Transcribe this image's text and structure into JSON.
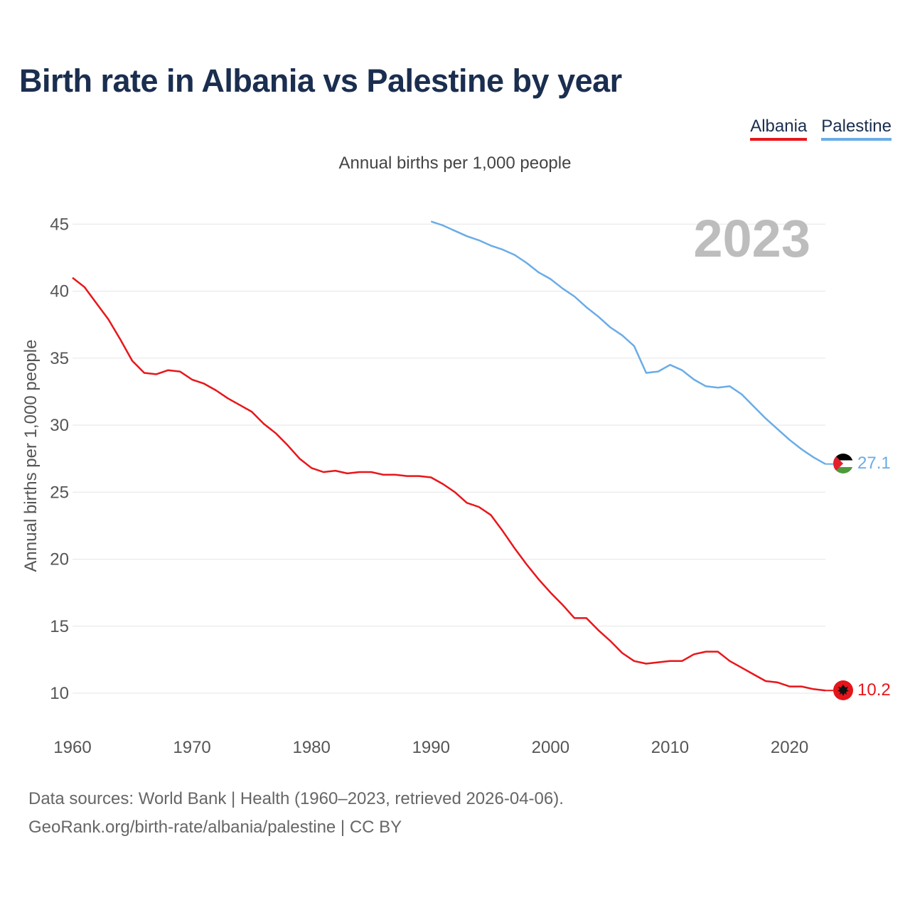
{
  "title": "Birth rate in Albania vs Palestine by year",
  "subtitle": "Annual births per 1,000 people",
  "legend": [
    {
      "label": "Albania",
      "color": "#e8161b"
    },
    {
      "label": "Palestine",
      "color": "#6aace6"
    }
  ],
  "footer": {
    "line1": "Data sources: World Bank | Health (1960–2023, retrieved 2026-04-06).",
    "line2": "GeoRank.org/birth-rate/albania/palestine | CC BY"
  },
  "chart_data": {
    "type": "line",
    "title": "Birth rate in Albania vs Palestine by year",
    "ylabel": "Annual births per 1,000 people",
    "xlabel": "",
    "year_label": "2023",
    "xlim": [
      1960,
      2023
    ],
    "ylim": [
      7,
      46
    ],
    "x_ticks": [
      1960,
      1970,
      1980,
      1990,
      2000,
      2010,
      2020
    ],
    "y_ticks": [
      10,
      15,
      20,
      25,
      30,
      35,
      40,
      45
    ],
    "grid": true,
    "series": [
      {
        "name": "Albania",
        "color": "#e8161b",
        "end_label": "10.2",
        "x": [
          1960,
          1961,
          1962,
          1963,
          1964,
          1965,
          1966,
          1967,
          1968,
          1969,
          1970,
          1971,
          1972,
          1973,
          1974,
          1975,
          1976,
          1977,
          1978,
          1979,
          1980,
          1981,
          1982,
          1983,
          1984,
          1985,
          1986,
          1987,
          1988,
          1989,
          1990,
          1991,
          1992,
          1993,
          1994,
          1995,
          1996,
          1997,
          1998,
          1999,
          2000,
          2001,
          2002,
          2003,
          2004,
          2005,
          2006,
          2007,
          2008,
          2009,
          2010,
          2011,
          2012,
          2013,
          2014,
          2015,
          2016,
          2017,
          2018,
          2019,
          2020,
          2021,
          2022,
          2023
        ],
        "values": [
          41.0,
          40.3,
          39.1,
          37.9,
          36.4,
          34.8,
          33.9,
          33.8,
          34.1,
          34.0,
          33.4,
          33.1,
          32.6,
          32.0,
          31.5,
          31.0,
          30.1,
          29.4,
          28.5,
          27.5,
          26.8,
          26.5,
          26.6,
          26.4,
          26.5,
          26.5,
          26.3,
          26.3,
          26.2,
          26.2,
          26.1,
          25.6,
          25.0,
          24.2,
          23.9,
          23.3,
          22.1,
          20.8,
          19.6,
          18.5,
          17.5,
          16.6,
          15.6,
          15.6,
          14.7,
          13.9,
          13.0,
          12.4,
          12.2,
          12.3,
          12.4,
          12.4,
          12.9,
          13.1,
          13.1,
          12.4,
          11.9,
          11.4,
          10.9,
          10.8,
          10.5,
          10.5,
          10.3,
          10.2
        ]
      },
      {
        "name": "Palestine",
        "color": "#6aace6",
        "end_label": "27.1",
        "x": [
          1990,
          1991,
          1992,
          1993,
          1994,
          1995,
          1996,
          1997,
          1998,
          1999,
          2000,
          2001,
          2002,
          2003,
          2004,
          2005,
          2006,
          2007,
          2008,
          2009,
          2010,
          2011,
          2012,
          2013,
          2014,
          2015,
          2016,
          2017,
          2018,
          2019,
          2020,
          2021,
          2022,
          2023
        ],
        "values": [
          45.2,
          44.9,
          44.5,
          44.1,
          43.8,
          43.4,
          43.1,
          42.7,
          42.1,
          41.4,
          40.9,
          40.2,
          39.6,
          38.8,
          38.1,
          37.3,
          36.7,
          35.9,
          33.9,
          34.0,
          34.5,
          34.1,
          33.4,
          32.9,
          32.8,
          32.9,
          32.3,
          31.4,
          30.5,
          29.7,
          28.9,
          28.2,
          27.6,
          27.1
        ]
      }
    ]
  }
}
